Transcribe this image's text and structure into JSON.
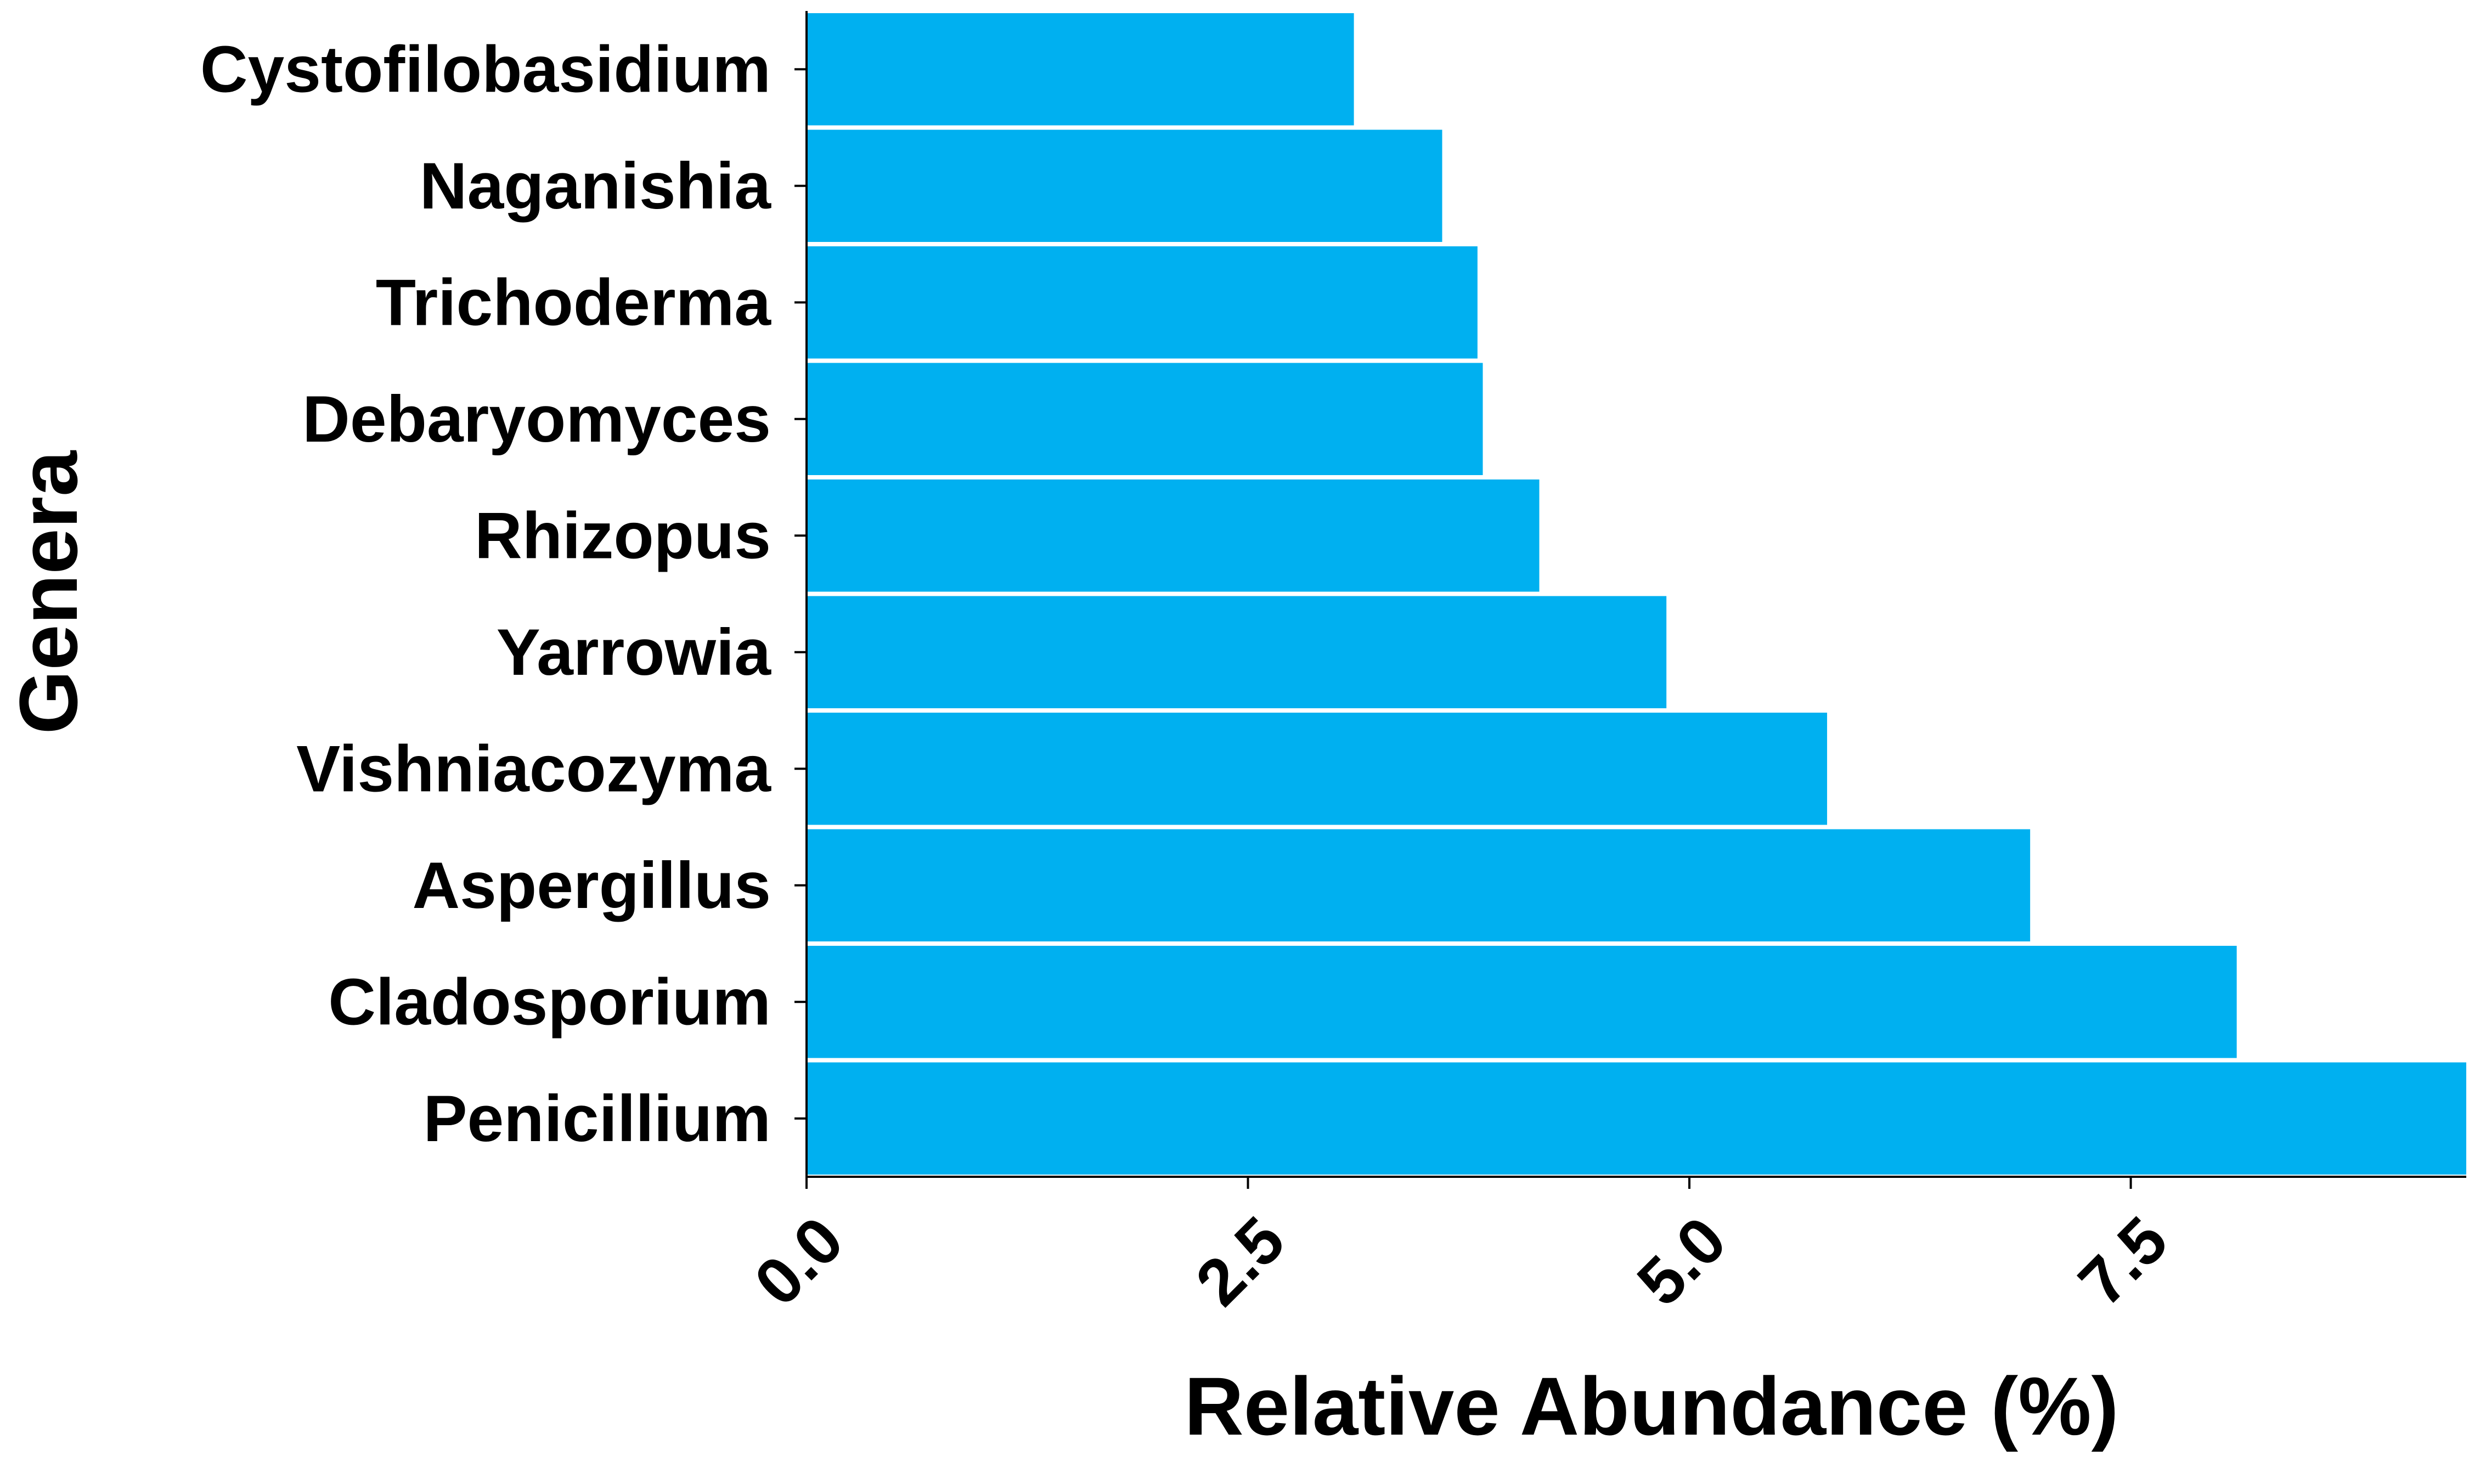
{
  "chart_data": {
    "type": "bar",
    "orientation": "horizontal",
    "title": "",
    "xlabel": "Relative Abundance (%)",
    "ylabel": "Genera",
    "categories": [
      "Cystofilobasidium",
      "Naganishia",
      "Trichoderma",
      "Debaryomyces",
      "Rhizopus",
      "Yarrowia",
      "Vishniacozyma",
      "Aspergillus",
      "Cladosporium",
      "Penicillium"
    ],
    "values": [
      3.1,
      3.6,
      3.8,
      3.83,
      4.15,
      4.87,
      5.78,
      6.93,
      8.1,
      9.4
    ],
    "xlim": [
      0,
      9.4
    ],
    "xticks": [
      "0.0",
      "2.5",
      "5.0",
      "7.5"
    ],
    "xtick_values": [
      0,
      2.5,
      5,
      7.5
    ],
    "grid": false,
    "legend": "none",
    "bar_color": "#00B0F0",
    "axis_color": "#000000"
  }
}
